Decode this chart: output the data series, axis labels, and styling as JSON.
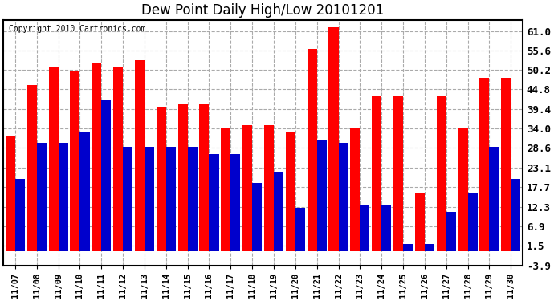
{
  "title": "Dew Point Daily High/Low 20101201",
  "copyright": "Copyright 2010 Cartronics.com",
  "dates": [
    "11/07",
    "11/08",
    "11/09",
    "11/10",
    "11/11",
    "11/12",
    "11/13",
    "11/14",
    "11/15",
    "11/16",
    "11/17",
    "11/18",
    "11/19",
    "11/20",
    "11/21",
    "11/22",
    "11/23",
    "11/24",
    "11/25",
    "11/26",
    "11/27",
    "11/28",
    "11/29",
    "11/30"
  ],
  "highs": [
    32,
    46,
    51,
    50,
    52,
    51,
    53,
    40,
    41,
    41,
    34,
    35,
    35,
    33,
    56,
    62,
    34,
    43,
    43,
    16,
    43,
    34,
    48,
    48
  ],
  "lows": [
    20,
    30,
    30,
    33,
    42,
    29,
    29,
    29,
    29,
    27,
    27,
    19,
    22,
    12,
    31,
    30,
    13,
    13,
    2,
    2,
    11,
    16,
    29,
    20
  ],
  "bar_color_high": "#ff0000",
  "bar_color_low": "#0000cc",
  "background_color": "#ffffff",
  "plot_bg_color": "#ffffff",
  "grid_color": "#aaaaaa",
  "title_fontsize": 12,
  "ylim": [
    -3.9,
    64.0
  ],
  "yticks": [
    -3.9,
    1.5,
    6.9,
    12.3,
    17.7,
    23.1,
    28.6,
    34.0,
    39.4,
    44.8,
    50.2,
    55.6,
    61.0
  ],
  "ytick_labels": [
    "-3.9",
    "1.5",
    "6.9",
    "12.3",
    "17.7",
    "23.1",
    "28.6",
    "34.0",
    "39.4",
    "44.8",
    "50.2",
    "55.6",
    "61.0"
  ]
}
